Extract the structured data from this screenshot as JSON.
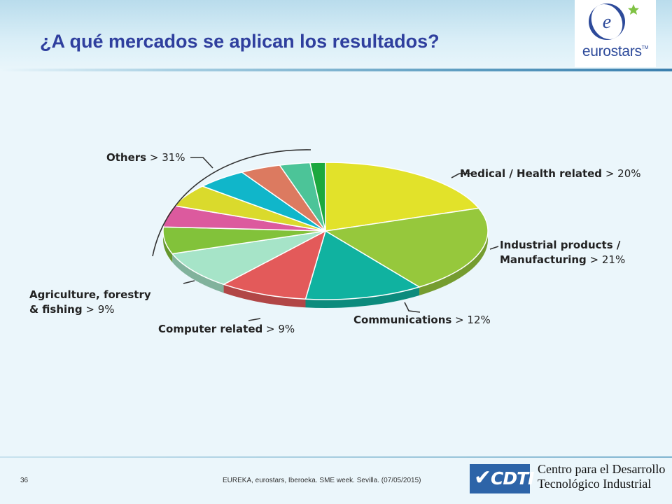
{
  "slide": {
    "title": "¿A qué mercados se aplican los resultados?",
    "page_number": "36",
    "footer_text": "EUREKA, eurostars, Iberoeka. SME week. Sevilla. (07/05/2015)"
  },
  "logos": {
    "eurostars_text": "eurostars",
    "eurostars_tm": "TM",
    "eurostars_symbol": "e",
    "eurostars_icon": "star-icon",
    "cdti_text": "CDTI",
    "cdti_icon": "checkmark-icon",
    "cdti_name_line1": "Centro para el Desarrollo",
    "cdti_name_line2": "Tecnológico Industrial"
  },
  "colors": {
    "title": "#2f3f9e",
    "background": "#ebf6fb",
    "cdti_blue": "#2d64a8"
  },
  "chart_data": {
    "type": "pie",
    "title": "",
    "slices": [
      {
        "label": "Medical / Health related",
        "value": 20,
        "color": "#e2e22a"
      },
      {
        "label": "Industrial products / Manufacturing",
        "value": 21,
        "color": "#96c83c"
      },
      {
        "label": "Communications",
        "value": 12,
        "color": "#10b2a0"
      },
      {
        "label": "Computer related",
        "value": 9,
        "color": "#e35a5a"
      },
      {
        "label": "Agriculture, forestry & fishing",
        "value": 9,
        "color": "#a6e4c8"
      },
      {
        "label": "Others",
        "value": 31,
        "color": "#e2e22a"
      }
    ],
    "others_breakdown_colors": [
      "#82c23a",
      "#dc5a9e",
      "#dada2c",
      "#10b6ca",
      "#dc7a60",
      "#4cc498",
      "#1ca83e"
    ],
    "labels": [
      {
        "name": "Medical / Health related",
        "sep": ">",
        "pct": "20%"
      },
      {
        "name": "Industrial products /",
        "name2": "Manufacturing",
        "sep": ">",
        "pct": "21%"
      },
      {
        "name": "Communications",
        "sep": ">",
        "pct": "12%"
      },
      {
        "name": "Computer related",
        "sep": ">",
        "pct": "9%"
      },
      {
        "name": "Agriculture, forestry",
        "name2": "& fishing",
        "sep": ">",
        "pct": "9%"
      },
      {
        "name": "Others",
        "sep": ">",
        "pct": "31%"
      }
    ]
  }
}
